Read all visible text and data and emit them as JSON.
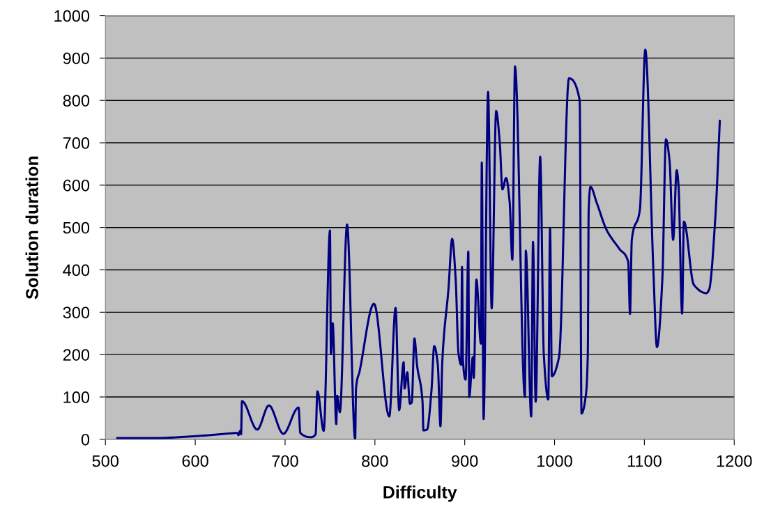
{
  "chart_data": {
    "type": "line",
    "xlabel": "Difficulty",
    "ylabel": "Solution duration",
    "x": [
      513,
      554,
      604,
      639,
      647,
      648,
      650,
      651,
      652,
      669,
      682,
      698,
      715,
      717,
      729,
      734,
      736,
      743,
      750,
      751,
      753,
      757,
      758,
      761,
      769,
      778,
      779,
      783,
      799,
      816,
      823,
      827,
      832,
      833,
      836,
      839,
      841,
      844,
      847,
      853,
      854,
      858,
      863,
      866,
      870,
      873,
      875,
      882,
      886,
      890,
      893,
      896,
      897,
      898,
      901,
      904,
      905,
      909,
      910,
      913,
      918,
      919,
      921,
      926,
      930,
      935,
      939,
      942,
      946,
      950,
      953,
      956,
      967,
      968,
      974,
      976,
      979,
      984,
      988,
      993,
      995,
      997,
      1005,
      1016,
      1028,
      1030,
      1035,
      1037,
      1038,
      1040,
      1047,
      1058,
      1072,
      1082,
      1084,
      1086,
      1095,
      1101,
      1110,
      1114,
      1120,
      1124,
      1128,
      1132,
      1136,
      1138,
      1142,
      1144,
      1155,
      1169,
      1172,
      1179,
      1184
    ],
    "series": [
      {
        "color": "#000080",
        "values": [
          3,
          3,
          8,
          14,
          15,
          10,
          20,
          12,
          90,
          23,
          80,
          13,
          75,
          15,
          5,
          12,
          113,
          20,
          493,
          202,
          274,
          36,
          103,
          64,
          507,
          0,
          121,
          161,
          320,
          54,
          310,
          69,
          182,
          120,
          158,
          84,
          87,
          238,
          174,
          89,
          21,
          23,
          116,
          220,
          177,
          31,
          182,
          358,
          473,
          374,
          204,
          176,
          407,
          187,
          141,
          443,
          100,
          194,
          145,
          377,
          226,
          653,
          48,
          820,
          309,
          775,
          700,
          590,
          617,
          560,
          424,
          880,
          100,
          445,
          54,
          466,
          89,
          667,
          202,
          94,
          499,
          149,
          194,
          852,
          800,
          61,
          107,
          200,
          542,
          596,
          558,
          494,
          450,
          419,
          296,
          471,
          542,
          920,
          400,
          218,
          378,
          708,
          658,
          471,
          635,
          599,
          297,
          514,
          365,
          345,
          353,
          524,
          752
        ]
      }
    ],
    "xlim": [
      500,
      1200
    ],
    "xticks": [
      500,
      600,
      700,
      800,
      900,
      1000,
      1100,
      1200
    ],
    "ylim": [
      0,
      1000
    ],
    "yticks": [
      0,
      100,
      200,
      300,
      400,
      500,
      600,
      700,
      800,
      900,
      1000
    ],
    "grid": "y"
  }
}
